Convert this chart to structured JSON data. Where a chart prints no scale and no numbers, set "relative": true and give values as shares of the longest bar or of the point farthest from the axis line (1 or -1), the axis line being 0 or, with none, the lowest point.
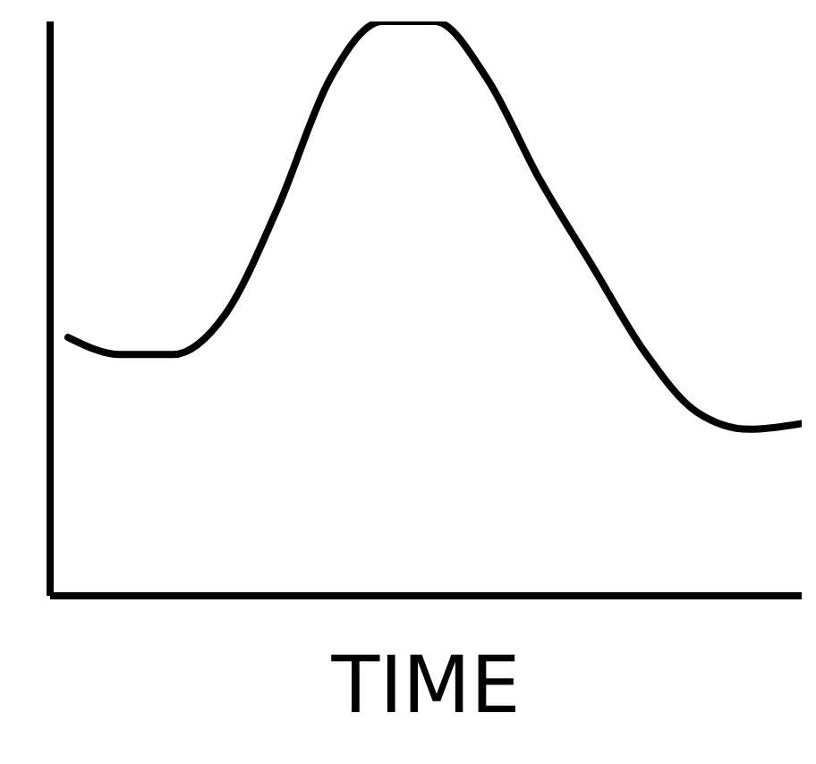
{
  "chart_data": {
    "type": "line",
    "xlabel": "TIME",
    "relative": true,
    "categories": [
      null,
      null,
      null,
      null,
      null,
      null,
      null,
      null,
      null,
      null,
      null,
      null,
      null,
      null,
      null
    ],
    "series": [
      {
        "color": "#000000",
        "values": [
          0.45,
          0.42,
          0.42,
          0.49,
          0.675,
          0.9,
          1.0,
          1.0,
          0.9,
          0.725,
          0.575,
          0.425,
          0.32,
          0.29,
          0.3
        ]
      }
    ],
    "marker": "none",
    "line_style": "solid",
    "grid": false,
    "legend": false
  }
}
